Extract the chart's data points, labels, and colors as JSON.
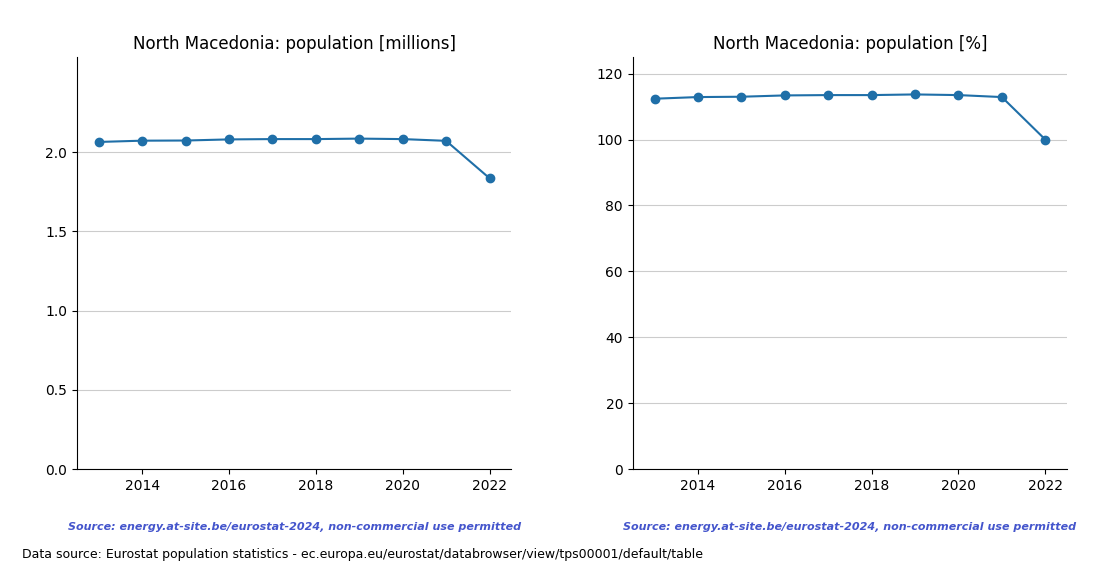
{
  "years": [
    2013,
    2014,
    2015,
    2016,
    2017,
    2018,
    2019,
    2020,
    2021,
    2022
  ],
  "population_millions": [
    2.065,
    2.073,
    2.074,
    2.081,
    2.083,
    2.083,
    2.086,
    2.083,
    2.072,
    1.836
  ],
  "population_pct": [
    112.4,
    112.9,
    113.0,
    113.4,
    113.5,
    113.5,
    113.7,
    113.5,
    112.9,
    100.0
  ],
  "title_left": "North Macedonia: population [millions]",
  "title_right": "North Macedonia: population [%]",
  "source_text": "Source: energy.at-site.be/eurostat-2024, non-commercial use permitted",
  "footer_text": "Data source: Eurostat population statistics - ec.europa.eu/eurostat/databrowser/view/tps00001/default/table",
  "line_color": "#1f6fa8",
  "marker_color": "#1f6fa8",
  "source_color": "#4455cc",
  "footer_color": "#000000",
  "ylim_left": [
    0.0,
    2.6
  ],
  "ylim_right": [
    0,
    125
  ],
  "yticks_left": [
    0.0,
    0.5,
    1.0,
    1.5,
    2.0
  ],
  "yticks_right": [
    0,
    20,
    40,
    60,
    80,
    100,
    120
  ],
  "grid_color": "#cccccc",
  "bg_color": "#ffffff"
}
